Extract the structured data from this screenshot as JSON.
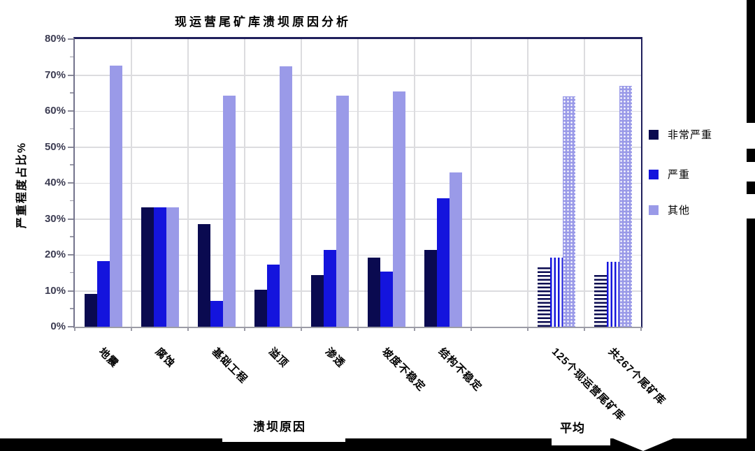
{
  "title": "现运营尾矿库溃坝原因分析",
  "y_axis_title": "严重程度占比%",
  "x_axis_title": "溃坝原因",
  "average_label": "平均",
  "legend": [
    {
      "label": "非常严重",
      "color": "#0a0a50"
    },
    {
      "label": "严重",
      "color": "#1414dd"
    },
    {
      "label": "其他",
      "color": "#9a9ae8"
    }
  ],
  "chart_data": {
    "type": "bar",
    "title": "现运营尾矿库溃坝原因分析",
    "xlabel": "溃坝原因",
    "ylabel": "严重程度占比%",
    "ylim": [
      0,
      80
    ],
    "y_tick_step": 10,
    "y_tick_suffix": "%",
    "grid": true,
    "legend_position": "right",
    "categories": [
      "地震",
      "腐蚀",
      "基础工程",
      "溢顶",
      "渗透",
      "坡度不稳定",
      "结构不稳定",
      "125个现运营尾矿库",
      "共267个尾矿库"
    ],
    "slots": [
      0,
      1,
      2,
      3,
      4,
      5,
      6,
      8,
      9
    ],
    "patterned": [
      false,
      false,
      false,
      false,
      false,
      false,
      false,
      true,
      true
    ],
    "series": [
      {
        "name": "非常严重",
        "values": [
          9.1,
          33.3,
          28.6,
          10.3,
          14.3,
          19.2,
          21.4,
          17.0,
          15.0
        ]
      },
      {
        "name": "严重",
        "values": [
          18.2,
          33.3,
          7.1,
          17.2,
          21.4,
          15.4,
          35.7,
          19.2,
          18.0
        ]
      },
      {
        "name": "其他",
        "values": [
          72.7,
          33.3,
          64.3,
          72.4,
          64.3,
          65.4,
          42.9,
          64.0,
          67.0
        ]
      }
    ]
  }
}
